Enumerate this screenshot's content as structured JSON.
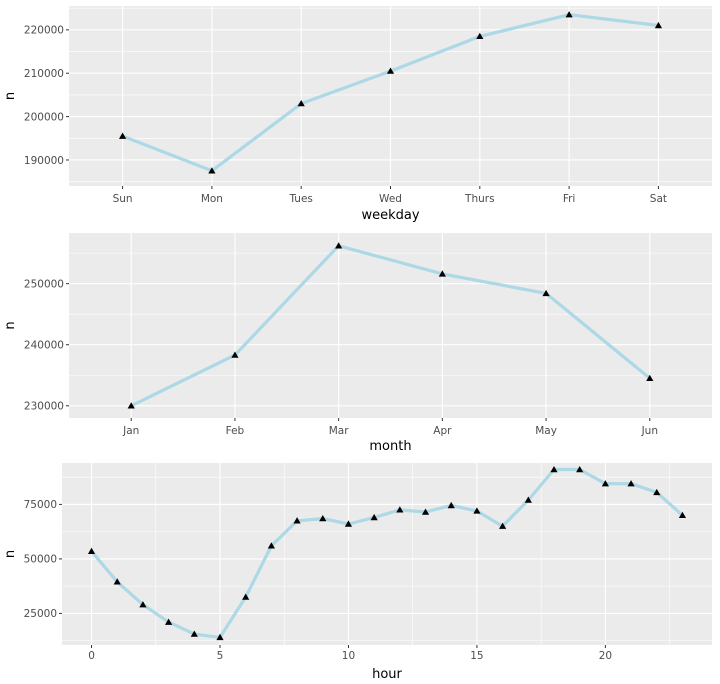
{
  "chart_data": [
    {
      "type": "line",
      "xlabel": "weekday",
      "ylabel": "n",
      "categories": [
        "Sun",
        "Mon",
        "Tues",
        "Wed",
        "Thurs",
        "Fri",
        "Sat"
      ],
      "values": [
        195500,
        187500,
        203000,
        210500,
        218500,
        223500,
        221000
      ],
      "ylim": [
        184000,
        225500
      ],
      "yticks": [
        "190000",
        "200000",
        "210000",
        "220000"
      ],
      "grid": true,
      "line_color": "#add8e6",
      "marker": "triangle"
    },
    {
      "type": "line",
      "xlabel": "month",
      "ylabel": "n",
      "categories": [
        "Jan",
        "Feb",
        "Mar",
        "Apr",
        "May",
        "Jun"
      ],
      "values": [
        230000,
        238300,
        256200,
        251600,
        248400,
        234500
      ],
      "ylim": [
        228000,
        258300
      ],
      "yticks": [
        "230000",
        "240000",
        "250000"
      ],
      "grid": true,
      "line_color": "#add8e6",
      "marker": "triangle"
    },
    {
      "type": "line",
      "xlabel": "hour",
      "ylabel": "n",
      "x": [
        0,
        1,
        2,
        3,
        4,
        5,
        6,
        7,
        8,
        9,
        10,
        11,
        12,
        13,
        14,
        15,
        16,
        17,
        18,
        19,
        20,
        21,
        22,
        23
      ],
      "values": [
        53500,
        39500,
        29000,
        21000,
        15500,
        14000,
        32500,
        56000,
        67500,
        68500,
        66000,
        69000,
        72500,
        71500,
        74500,
        72000,
        65000,
        77000,
        91000,
        91000,
        84500,
        84500,
        80500,
        70000
      ],
      "xlim": [
        -1.15,
        24.15
      ],
      "ylim": [
        10500,
        94000
      ],
      "xticks": [
        "0",
        "5",
        "10",
        "15",
        "20"
      ],
      "yticks": [
        "25000",
        "50000",
        "75000"
      ],
      "grid": true,
      "line_color": "#add8e6",
      "marker": "triangle"
    }
  ]
}
